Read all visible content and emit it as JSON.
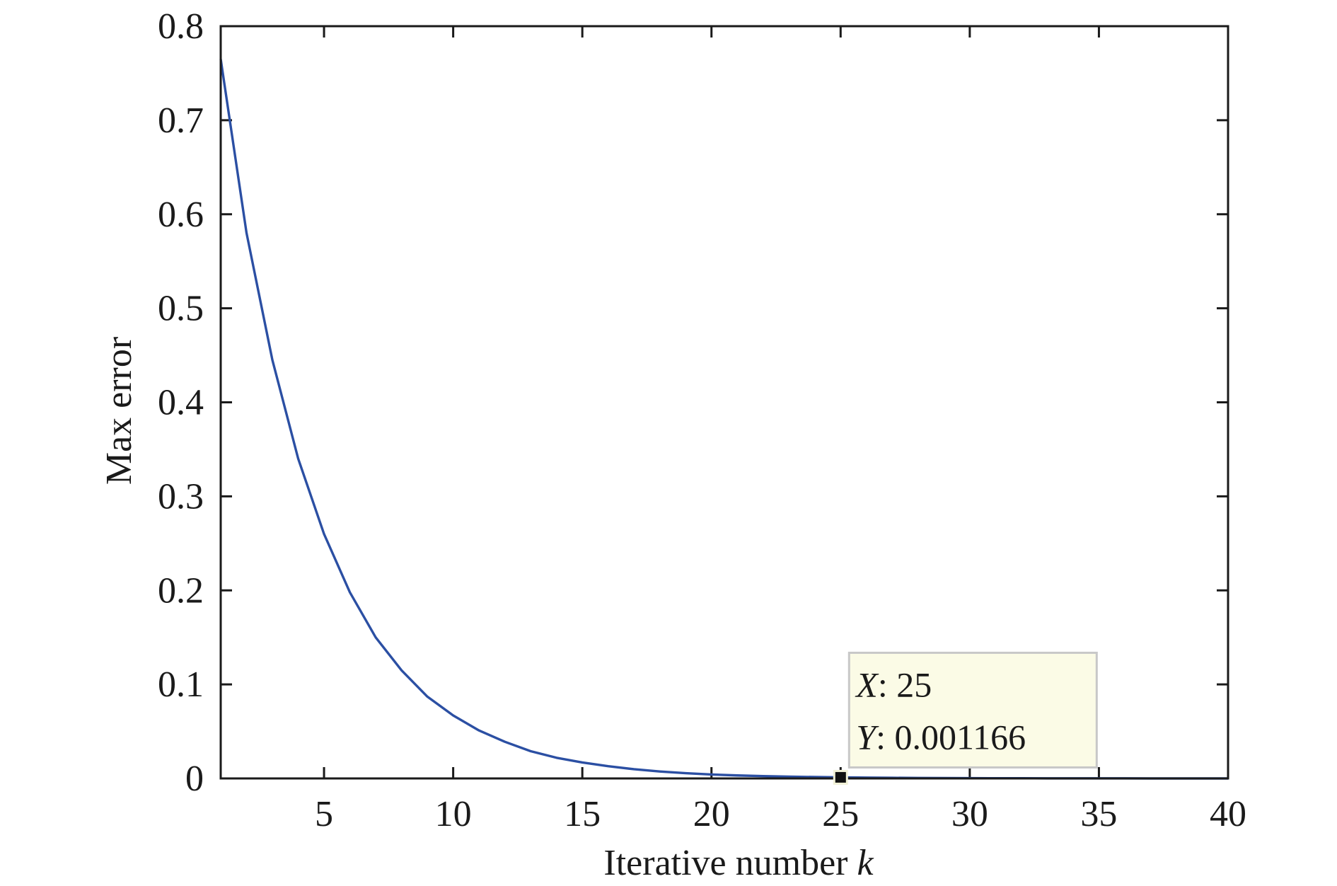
{
  "chart_data": {
    "type": "line",
    "xlabel": "Iterative number",
    "xlabel_var": "k",
    "ylabel": "Max error",
    "xlim": [
      1,
      40
    ],
    "ylim": [
      0,
      0.8
    ],
    "xticks": [
      5,
      10,
      15,
      20,
      25,
      30,
      35,
      40
    ],
    "yticks": [
      0,
      0.1,
      0.2,
      0.3,
      0.4,
      0.5,
      0.6,
      0.7,
      0.8
    ],
    "xtick_labels": [
      "5",
      "10",
      "15",
      "20",
      "25",
      "30",
      "35",
      "40"
    ],
    "ytick_labels": [
      "0",
      "0.1",
      "0.2",
      "0.3",
      "0.4",
      "0.5",
      "0.6",
      "0.7",
      "0.8"
    ],
    "grid": false,
    "line_color": "#2b4fa3",
    "series": [
      {
        "x": [
          1,
          2,
          3,
          4,
          5,
          6,
          7,
          8,
          9,
          10,
          11,
          12,
          13,
          14,
          15,
          16,
          17,
          18,
          19,
          20,
          21,
          22,
          23,
          24,
          25,
          26,
          27,
          28,
          29,
          30,
          31,
          32,
          33,
          34,
          35,
          36,
          37,
          38,
          39,
          40
        ],
        "y": [
          0.765,
          0.58,
          0.445,
          0.34,
          0.26,
          0.198,
          0.15,
          0.115,
          0.087,
          0.067,
          0.051,
          0.039,
          0.029,
          0.022,
          0.017,
          0.013,
          0.0098,
          0.0074,
          0.0056,
          0.0042,
          0.0032,
          0.0025,
          0.0019,
          0.0015,
          0.001166,
          0.0009,
          0.0007,
          0.0005,
          0.0004,
          0.0003,
          0.0002,
          0.0002,
          0.0001,
          0.0001,
          0.0001,
          0.0001,
          0,
          0,
          0,
          0
        ]
      }
    ],
    "datatip": {
      "x_label": "X",
      "x_value": "25",
      "y_label": "Y",
      "y_value": "0.001166",
      "x": 25,
      "y": 0.001166,
      "bg_color": "#fbfbe6",
      "border_color": "#c8c8c8"
    }
  }
}
